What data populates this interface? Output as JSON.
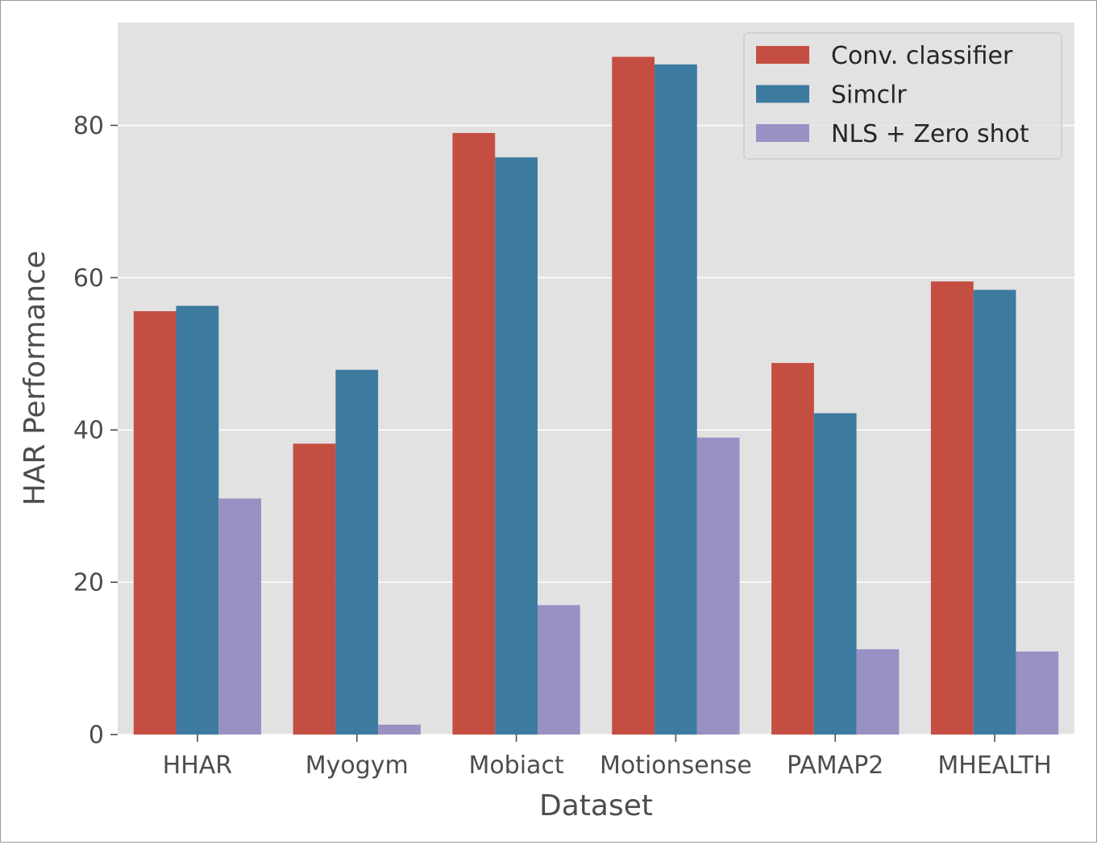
{
  "chart_data": {
    "type": "bar",
    "title": "",
    "xlabel": "Dataset",
    "ylabel": "HAR Performance",
    "categories": [
      "HHAR",
      "Myogym",
      "Mobiact",
      "Motionsense",
      "PAMAP2",
      "MHEALTH"
    ],
    "series": [
      {
        "name": "Conv. classifier",
        "color": "#c44e41",
        "values": [
          55.6,
          38.2,
          79.0,
          89.0,
          48.8,
          59.5
        ]
      },
      {
        "name": "Simclr",
        "color": "#3d7a9f",
        "values": [
          56.3,
          47.9,
          75.8,
          88.0,
          42.2,
          58.4
        ]
      },
      {
        "name": "NLS + Zero shot",
        "color": "#9990c4",
        "values": [
          31.0,
          1.3,
          17.0,
          39.0,
          11.2,
          10.9
        ]
      }
    ],
    "ylim": [
      0,
      93.5
    ],
    "yticks": [
      0,
      20,
      40,
      60,
      80
    ],
    "ytick_labels": [
      "0",
      "20",
      "40",
      "60",
      "80"
    ],
    "grid": true,
    "legend_position": "top-right",
    "background": "#e2e2e2",
    "grid_color": "#ffffff"
  }
}
